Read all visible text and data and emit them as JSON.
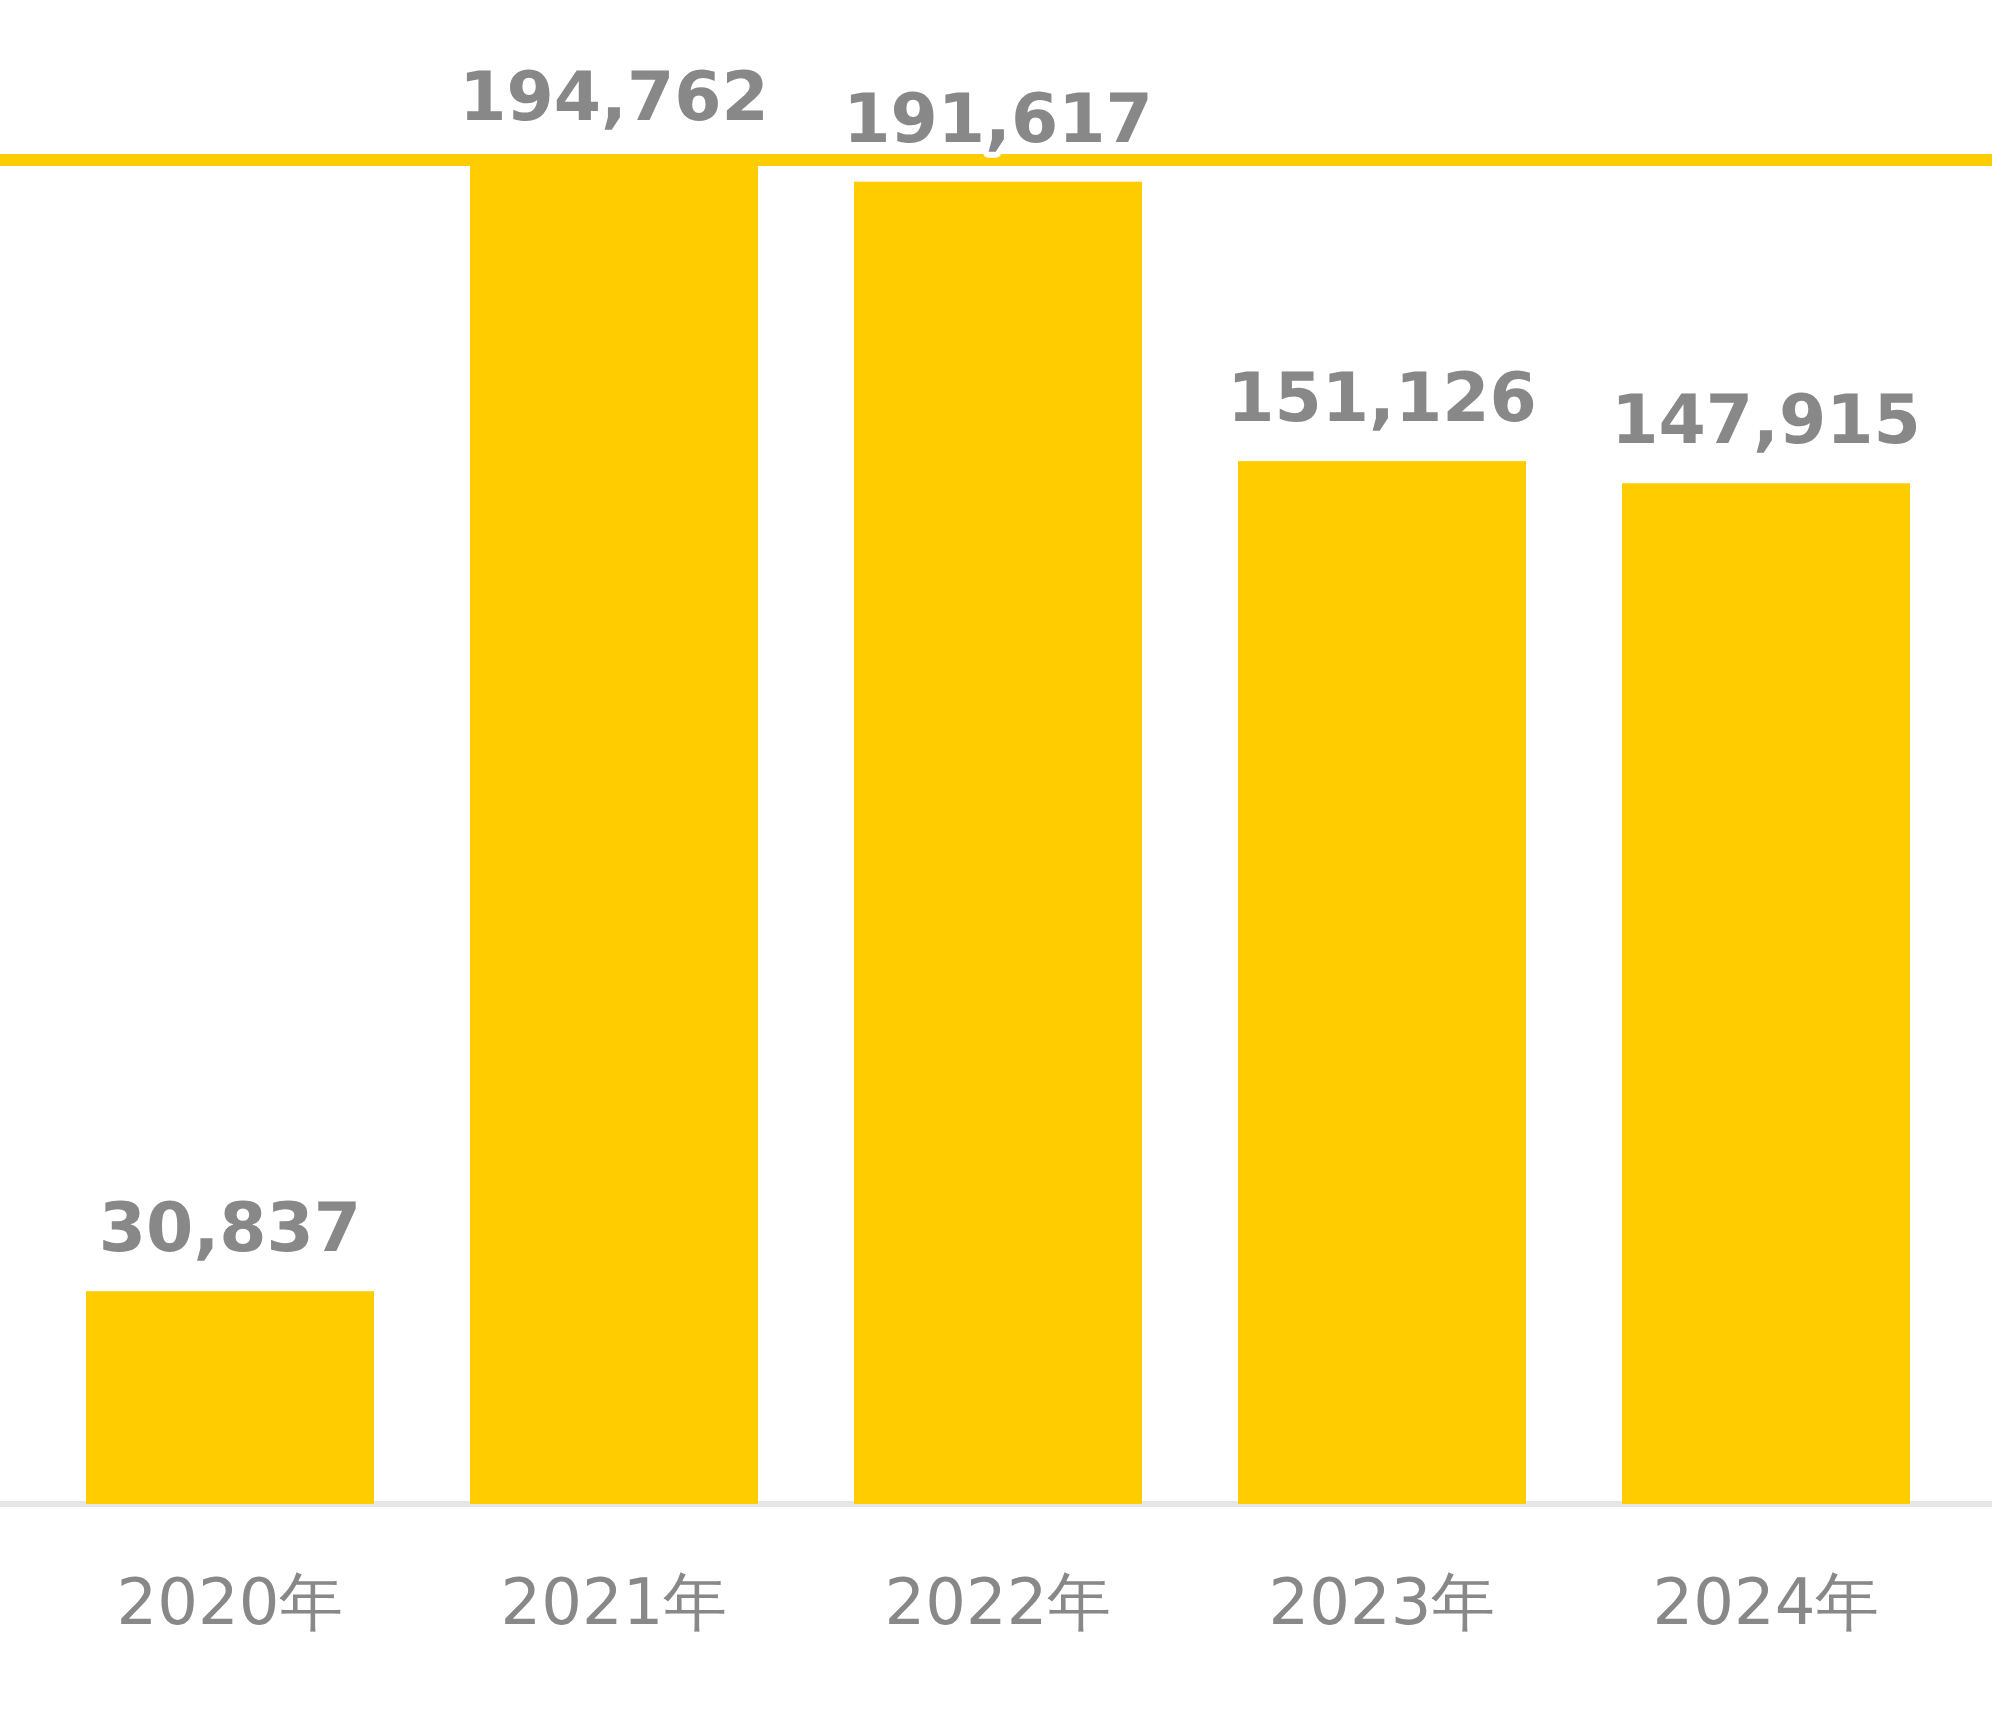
{
  "chart_data": {
    "type": "bar",
    "categories": [
      "2020年",
      "2021年",
      "2022年",
      "2023年",
      "2024年"
    ],
    "values": [
      30837,
      194762,
      191617,
      151126,
      147915
    ],
    "value_labels": [
      "30,837",
      "194,762",
      "191,617",
      "151,126",
      "147,915"
    ],
    "color": "#ffcc00",
    "tick_labels": "x",
    "ref_lines": [
      {
        "axis": "y",
        "value": 194762,
        "color": "#ffcc00",
        "line_style": "solid"
      }
    ]
  }
}
